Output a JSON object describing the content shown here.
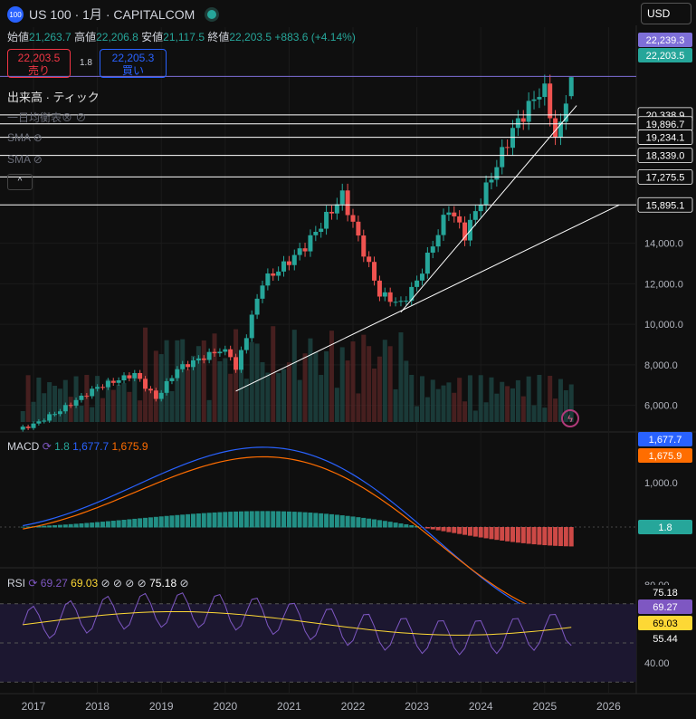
{
  "header": {
    "logo_text": "100",
    "symbol_line": "US 100 · 1月 · CAPITALCOM",
    "currency": "USD"
  },
  "ohlc": {
    "open_label": "始値",
    "open": "21,263.7",
    "high_label": "高値",
    "high": "22,206.8",
    "low_label": "安値",
    "low": "21,117.5",
    "close_label": "終値",
    "close": "22,203.5",
    "change": "+883.6 (+4.14%)"
  },
  "trade": {
    "sell_price": "22,203.5",
    "sell_label": "売り",
    "spread": "1.8",
    "buy_price": "22,205.3",
    "buy_label": "買い"
  },
  "indicators": {
    "volume": "出来高 · ティック",
    "ma": "一日均衡表⊗",
    "sma1": "SMA",
    "sma2": "SMA",
    "collapse": "^"
  },
  "price_axis": {
    "ticks": [
      "14,000.0",
      "12,000.0",
      "10,000.0",
      "8,000.0",
      "6,000.0"
    ],
    "levels": [
      "20,338.9",
      "19,896.7",
      "19,234.1",
      "18,339.0",
      "17,275.5",
      "15,895.1"
    ],
    "badge_high": "22,239.3",
    "badge_close": "22,203.5"
  },
  "macd": {
    "label": "MACD",
    "hist_val": "1.8",
    "macd_val": "1,677.7",
    "signal_val": "1,675.9",
    "axis_tick": "1,000.0",
    "badge_macd": "1,677.7",
    "badge_signal": "1,675.9",
    "badge_hist": "1.8"
  },
  "rsi": {
    "label": "RSI",
    "rsi_val": "69.27",
    "ma_val": "69.03",
    "extra_val": "75.18",
    "axis_ticks": [
      "80.00",
      "40.00"
    ],
    "badge_top": "75.18",
    "badge_rsi": "69.27",
    "badge_ma": "69.03",
    "badge_low": "55.44"
  },
  "time_axis": [
    "2017",
    "2018",
    "2019",
    "2020",
    "2021",
    "2022",
    "2023",
    "2024",
    "2025",
    "2026"
  ],
  "colors": {
    "up": "#26a69a",
    "down": "#ef5350",
    "macd": "#2962ff",
    "signal": "#ff6d00",
    "rsi": "#7e57c2",
    "rsi_ma": "#fdd835"
  },
  "chart_data": {
    "type": "candlestick",
    "title": "US 100 · 1月 · CAPITALCOM",
    "anchors": [
      {
        "t": "2016-10",
        "price": 4800
      },
      {
        "t": "2017-01",
        "price": 5050
      },
      {
        "t": "2017-06",
        "price": 5750
      },
      {
        "t": "2018-01",
        "price": 6900
      },
      {
        "t": "2018-08",
        "price": 7550
      },
      {
        "t": "2018-12",
        "price": 6330
      },
      {
        "t": "2019-04",
        "price": 7800
      },
      {
        "t": "2019-12",
        "price": 8730
      },
      {
        "t": "2020-02",
        "price": 8500
      },
      {
        "t": "2020-03",
        "price": 7750
      },
      {
        "t": "2020-08",
        "price": 12100
      },
      {
        "t": "2020-12",
        "price": 12890
      },
      {
        "t": "2021-04",
        "price": 13850
      },
      {
        "t": "2021-11",
        "price": 16350
      },
      {
        "t": "2022-06",
        "price": 11500
      },
      {
        "t": "2022-10",
        "price": 11000
      },
      {
        "t": "2023-01",
        "price": 12100
      },
      {
        "t": "2023-07",
        "price": 15750
      },
      {
        "t": "2023-10",
        "price": 14400
      },
      {
        "t": "2024-07",
        "price": 19600
      },
      {
        "t": "2024-12",
        "price": 21500
      },
      {
        "t": "2025-01",
        "price": 21500
      },
      {
        "t": "2025-03",
        "price": 19300
      },
      {
        "t": "2025-04",
        "price": 19700
      },
      {
        "t": "2025-05",
        "price": 21263.7
      },
      {
        "t": "2025-06",
        "price": 22203.5
      }
    ],
    "last_candle": {
      "t": "2025-06",
      "open": 21263.7,
      "high": 22206.8,
      "low": 21117.5,
      "close": 22203.5
    },
    "ylim": [
      4500,
      23500
    ],
    "trendlines": [
      {
        "from": {
          "t": "2020-03",
          "price": 6700
        },
        "to": {
          "t": "2026-03",
          "price": 15895.1
        }
      },
      {
        "from": {
          "t": "2022-10",
          "price": 10600
        },
        "to": {
          "t": "2025-07",
          "price": 20800
        }
      }
    ],
    "horizontal_levels": [
      22239.3,
      20338.9,
      19896.7,
      19234.1,
      18339.0,
      17275.5,
      15895.1
    ]
  }
}
